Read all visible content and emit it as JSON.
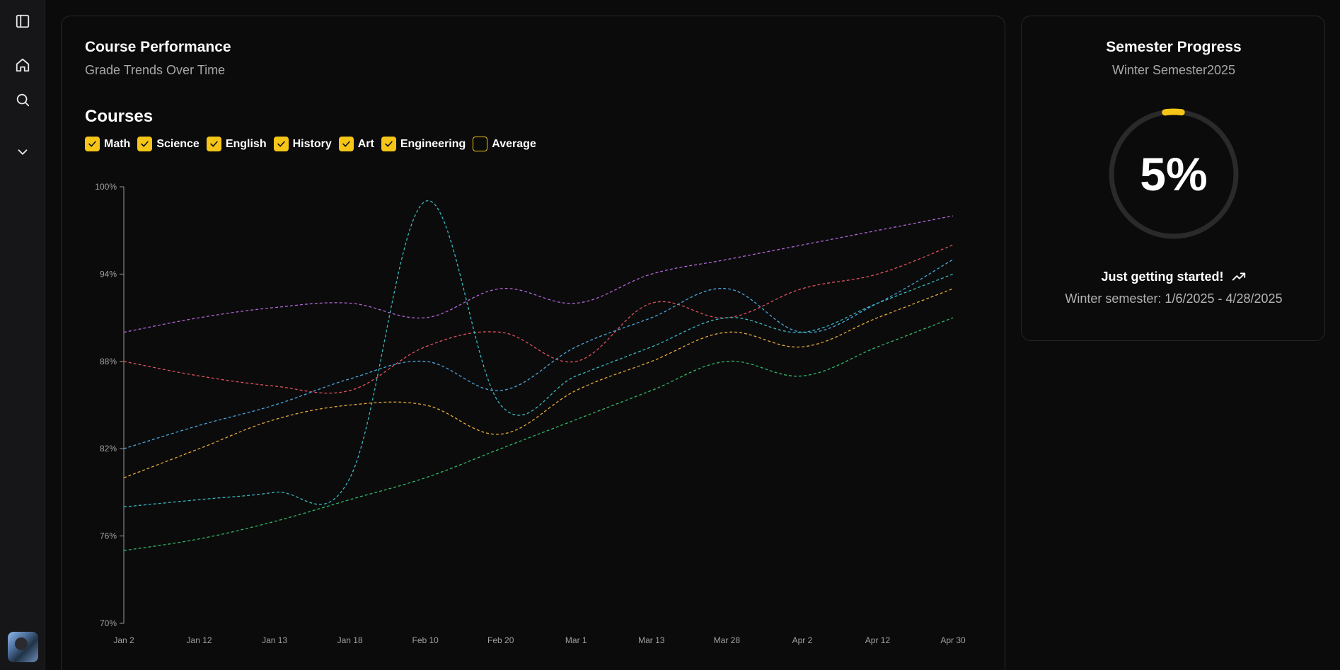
{
  "sidebar": {
    "items": [
      {
        "icon": "sidebar-toggle-icon"
      },
      {
        "icon": "home-icon"
      },
      {
        "icon": "search-icon"
      },
      {
        "icon": "chevron-down-icon"
      }
    ]
  },
  "performance": {
    "title": "Course Performance",
    "subtitle": "Grade Trends Over Time",
    "courses_heading": "Courses",
    "legend": [
      {
        "label": "Math",
        "checked": true
      },
      {
        "label": "Science",
        "checked": true
      },
      {
        "label": "English",
        "checked": true
      },
      {
        "label": "History",
        "checked": true
      },
      {
        "label": "Art",
        "checked": true
      },
      {
        "label": "Engineering",
        "checked": true
      },
      {
        "label": "Average",
        "checked": false
      }
    ]
  },
  "progress": {
    "title": "Semester Progress",
    "subtitle": "Winter Semester2025",
    "percent_label": "5%",
    "percent": 5,
    "status": "Just getting started!",
    "dates": "Winter semester: 1/6/2025 - 4/28/2025",
    "accent": "#f5c518"
  },
  "chart_data": {
    "type": "line",
    "line_style": "dashed",
    "categories": [
      "Jan 2",
      "Jan 12",
      "Jan 13",
      "Jan 18",
      "Feb 10",
      "Feb 20",
      "Mar 1",
      "Mar 13",
      "Mar 28",
      "Apr 2",
      "Apr 12",
      "Apr 30"
    ],
    "ylim": [
      70,
      100
    ],
    "yticks": [
      "70%",
      "76%",
      "82%",
      "88%",
      "94%",
      "100%"
    ],
    "ytick_values": [
      70,
      76,
      82,
      88,
      94,
      100
    ],
    "series": [
      {
        "color": "#b266d6",
        "values": [
          90,
          91,
          91.7,
          92,
          91,
          93,
          92,
          94,
          95,
          96,
          97,
          98
        ]
      },
      {
        "color": "#e0525e",
        "values": [
          88,
          87,
          86.3,
          86,
          89,
          90,
          88,
          92,
          91,
          93,
          94,
          96
        ]
      },
      {
        "color": "#4aa6e0",
        "values": [
          82,
          83.6,
          85,
          86.8,
          88,
          86,
          89,
          91,
          93,
          90,
          92,
          95
        ]
      },
      {
        "color": "#38b8c0",
        "values": [
          78,
          78.5,
          79,
          80,
          99,
          85,
          87,
          89,
          91,
          90,
          92,
          94
        ]
      },
      {
        "color": "#e6a93a",
        "values": [
          80,
          82,
          84,
          85,
          85,
          83,
          86,
          88,
          90,
          89,
          91,
          93
        ]
      },
      {
        "color": "#32b86a",
        "values": [
          75,
          75.8,
          77,
          78.5,
          80,
          82,
          84,
          86,
          88,
          87,
          89,
          91
        ]
      }
    ]
  }
}
